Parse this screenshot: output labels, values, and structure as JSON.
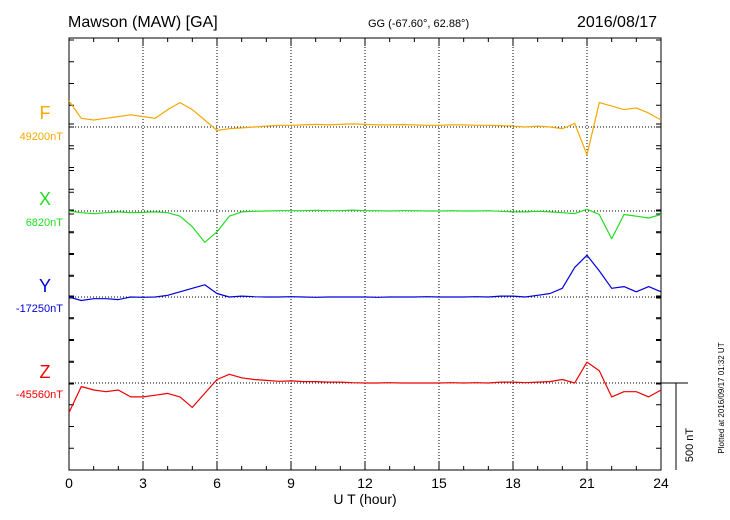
{
  "header": {
    "station": "Mawson (MAW)  [GA]",
    "coords": "GG (-67.60°,  62.88°)",
    "date": "2016/08/17"
  },
  "footer": {
    "plotted": "Plotted at 2016/09/17 01:32 UT",
    "scale_label": "500 nT"
  },
  "chart_data": {
    "type": "line",
    "xlabel": "U T (hour)",
    "xlim": [
      0,
      24
    ],
    "x_ticks": [
      "0",
      "3",
      "6",
      "9",
      "12",
      "15",
      "18",
      "21",
      "24"
    ],
    "grid": true,
    "scale_bar_nT": 500,
    "x": [
      0,
      0.5,
      1,
      1.5,
      2,
      2.5,
      3,
      3.5,
      4,
      4.5,
      5,
      5.5,
      6,
      6.5,
      7,
      7.5,
      8,
      8.5,
      9,
      9.5,
      10,
      10.5,
      11,
      11.5,
      12,
      12.5,
      13,
      13.5,
      14,
      14.5,
      15,
      15.5,
      16,
      16.5,
      17,
      17.5,
      18,
      18.5,
      19,
      19.5,
      20,
      20.5,
      21,
      21.5,
      22,
      22.5,
      23,
      23.5,
      24
    ],
    "series": [
      {
        "name": "F",
        "baseline_label": "49200nT",
        "color": "#f5a800",
        "values": [
          49350,
          49250,
          49240,
          49250,
          49260,
          49270,
          49260,
          49250,
          49300,
          49340,
          49300,
          49240,
          49180,
          49190,
          49195,
          49200,
          49205,
          49210,
          49210,
          49212,
          49215,
          49212,
          49215,
          49218,
          49215,
          49212,
          49212,
          49214,
          49212,
          49210,
          49210,
          49212,
          49212,
          49210,
          49210,
          49208,
          49205,
          49200,
          49205,
          49200,
          49190,
          49220,
          49040,
          49340,
          49320,
          49300,
          49310,
          49280,
          49240
        ]
      },
      {
        "name": "X",
        "baseline_label": "6820nT",
        "color": "#22dd22",
        "values": [
          6820,
          6810,
          6805,
          6810,
          6815,
          6810,
          6812,
          6815,
          6810,
          6790,
          6730,
          6640,
          6700,
          6790,
          6815,
          6818,
          6820,
          6822,
          6822,
          6822,
          6824,
          6822,
          6822,
          6825,
          6822,
          6822,
          6820,
          6822,
          6822,
          6820,
          6820,
          6822,
          6820,
          6820,
          6822,
          6818,
          6815,
          6815,
          6818,
          6815,
          6810,
          6805,
          6830,
          6800,
          6660,
          6800,
          6790,
          6780,
          6800
        ]
      },
      {
        "name": "Y",
        "baseline_label": "-17250nT",
        "color": "#0000dd",
        "values": [
          -17250,
          -17270,
          -17260,
          -17260,
          -17265,
          -17250,
          -17252,
          -17250,
          -17240,
          -17220,
          -17200,
          -17180,
          -17230,
          -17250,
          -17245,
          -17248,
          -17250,
          -17250,
          -17248,
          -17250,
          -17252,
          -17250,
          -17250,
          -17250,
          -17250,
          -17252,
          -17250,
          -17250,
          -17250,
          -17248,
          -17250,
          -17250,
          -17250,
          -17248,
          -17250,
          -17245,
          -17245,
          -17250,
          -17240,
          -17230,
          -17200,
          -17080,
          -17010,
          -17100,
          -17200,
          -17190,
          -17220,
          -17190,
          -17220
        ]
      },
      {
        "name": "Z",
        "baseline_label": "-45560nT",
        "color": "#ee0000",
        "values": [
          -45730,
          -45580,
          -45600,
          -45610,
          -45600,
          -45640,
          -45640,
          -45630,
          -45620,
          -45640,
          -45700,
          -45620,
          -45540,
          -45510,
          -45530,
          -45540,
          -45545,
          -45550,
          -45548,
          -45552,
          -45552,
          -45555,
          -45555,
          -45558,
          -45560,
          -45560,
          -45558,
          -45560,
          -45560,
          -45560,
          -45560,
          -45558,
          -45560,
          -45558,
          -45560,
          -45555,
          -45555,
          -45558,
          -45555,
          -45552,
          -45540,
          -45560,
          -45440,
          -45490,
          -45640,
          -45610,
          -45610,
          -45640,
          -45600
        ]
      }
    ]
  }
}
